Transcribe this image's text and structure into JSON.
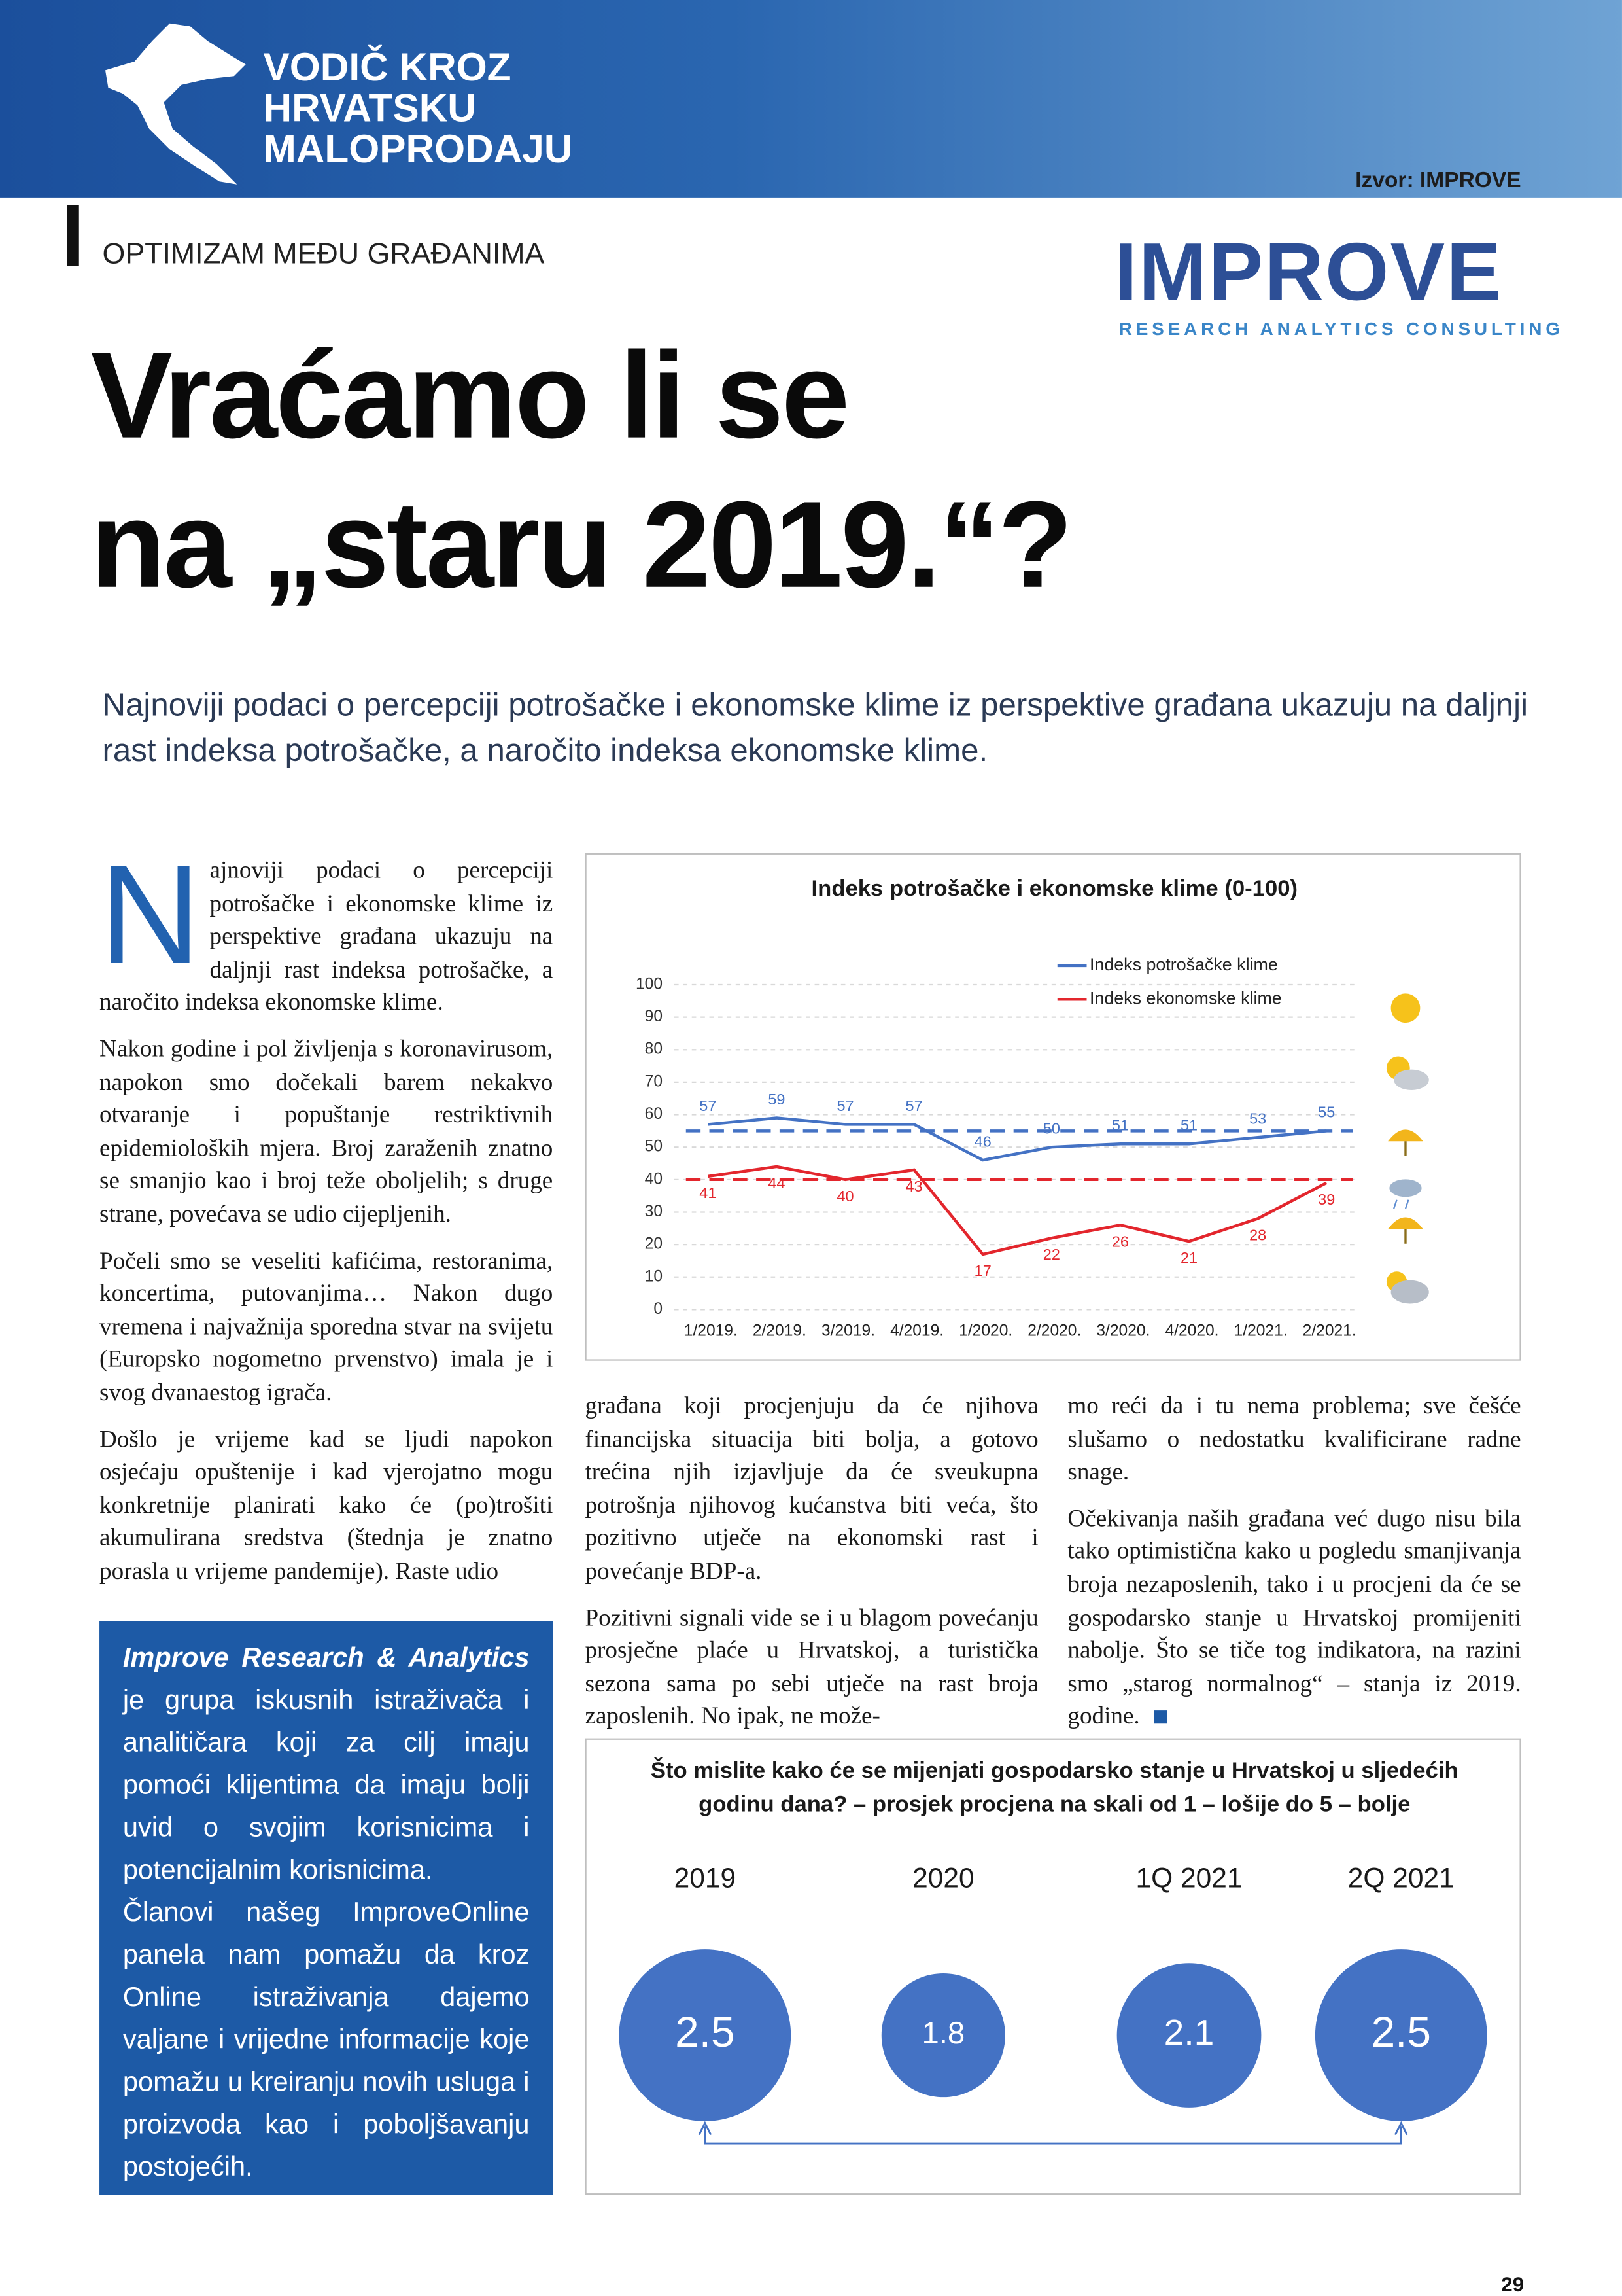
{
  "header": {
    "title_lines": [
      "VODIČ KROZ",
      "HRVATSKU",
      "MALOPRODAJU"
    ],
    "source": "Izvor: IMPROVE"
  },
  "section": "OPTIMIZAM MEĐU GRAĐANIMA",
  "logo": {
    "name": "IMPROVE",
    "tagline": "RESEARCH ANALYTICS CONSULTING"
  },
  "headline": [
    "Vraćamo li se",
    "na „staru 2019.“?"
  ],
  "lead": "Najnoviji podaci o percepciji potrošačke i ekonomske klime iz perspektive građana ukazuju na daljnji rast indeksa potrošačke, a naročito indeksa ekonomske klime.",
  "article": {
    "drop_cap": "N",
    "columns": [
      [
        "ajnoviji podaci o percepciji potrošačke i ekonomske klime iz perspektive građana ukazuju na daljnji rast indeksa potrošačke, a naročito indeksa ekonomske klime.",
        "Nakon godine i pol življenja s koronavirusom, napokon smo dočekali barem nekakvo otvaranje i popuštanje restriktivnih epidemioloških mjera. Broj zaraženih znatno se smanjio kao i broj teže oboljelih; s druge strane, povećava se udio cijepljenih.",
        "Počeli smo se veseliti kafićima, restoranima, koncertima, putovanjima… Nakon dugo vremena i najvažnija sporedna stvar na svijetu (Europsko nogometno prvenstvo) imala je i svog dvanaestog igrača.",
        "Došlo je vrijeme kad se ljudi napokon osjećaju opuštenije i kad vjerojatno mogu konkretnije planirati kako će (po)trošiti akumulirana sredstva (štednja je znatno porasla u vrijeme pandemije). Raste udio"
      ],
      [
        "građana koji procjenjuju da će njihova financijska situacija biti bolja, a gotovo trećina njih izjavljuje da će sveukupna potrošnja njihovog kućanstva biti veća, što pozitivno utječe na ekonomski rast i povećanje BDP-a.",
        "Pozitivni signali vide se i u blagom povećanju prosječne plaće u Hrvatskoj, a turistička sezona sama po sebi utječe na rast broja zaposlenih. No ipak, ne može-"
      ],
      [
        "mo reći da i tu nema problema; sve češće slušamo o nedostatku kvalificirane radne snage.",
        "Očekivanja naših građana već dugo nisu bila tako optimistična kako u pogledu smanjivanja broja nezaposlenih, tako i u procjeni da će se gospodarsko stanje u Hrvatskoj promijeniti nabolje. Što se tiče tog indikatora, na razini smo „starog normalnog“ – stanja iz 2019. godine."
      ]
    ]
  },
  "infobox": {
    "lead": "Improve Research & Analytics",
    "paragraphs": [
      "je grupa iskusnih istraživača i analitičara koji za cilj imaju pomoći klijentima da imaju bolji uvid o svojim korisnicima i potencijalnim korisnicima.",
      "Članovi našeg ImproveOnline panela nam pomažu da kroz Online istraživanja dajemo valjane i vrijedne informacije koje pomažu u kreiranju novih usluga i proizvoda kao i poboljšavanju postojećih."
    ]
  },
  "chart_data": [
    {
      "type": "line",
      "title": "Indeks potrošačke i ekonomske klime (0-100)",
      "categories": [
        "1/2019.",
        "2/2019.",
        "3/2019.",
        "4/2019.",
        "1/2020.",
        "2/2020.",
        "3/2020.",
        "4/2020.",
        "1/2021.",
        "2/2021."
      ],
      "series": [
        {
          "name": "Indeks potrošačke klime",
          "color": "#4472c4",
          "label_position": "above",
          "values": [
            57,
            59,
            57,
            57,
            46,
            50,
            51,
            51,
            53,
            55
          ]
        },
        {
          "name": "Indeks ekonomske klime",
          "color": "#e3262d",
          "label_position": "below",
          "values": [
            41,
            44,
            40,
            43,
            17,
            22,
            26,
            21,
            28,
            39
          ]
        }
      ],
      "hlines": [
        {
          "value": 55,
          "color": "#4472c4"
        },
        {
          "value": 40,
          "color": "#e3262d"
        }
      ],
      "ylim": [
        0,
        100
      ],
      "yticks": [
        0,
        10,
        20,
        30,
        40,
        50,
        60,
        70,
        80,
        90,
        100
      ],
      "grid": true,
      "legend": "upper right"
    },
    {
      "type": "bubble",
      "title": "Što mislite kako će se mijenjati gospodarsko stanje u Hrvatskoj u sljedećih godinu dana? – prosjek procjena na skali od 1 – lošije do 5 – bolje",
      "categories": [
        "2019",
        "2020",
        "1Q 2021",
        "2Q 2021"
      ],
      "values": [
        2.5,
        1.8,
        2.1,
        2.5
      ],
      "color": "#4472c4"
    }
  ],
  "page_number": 29
}
